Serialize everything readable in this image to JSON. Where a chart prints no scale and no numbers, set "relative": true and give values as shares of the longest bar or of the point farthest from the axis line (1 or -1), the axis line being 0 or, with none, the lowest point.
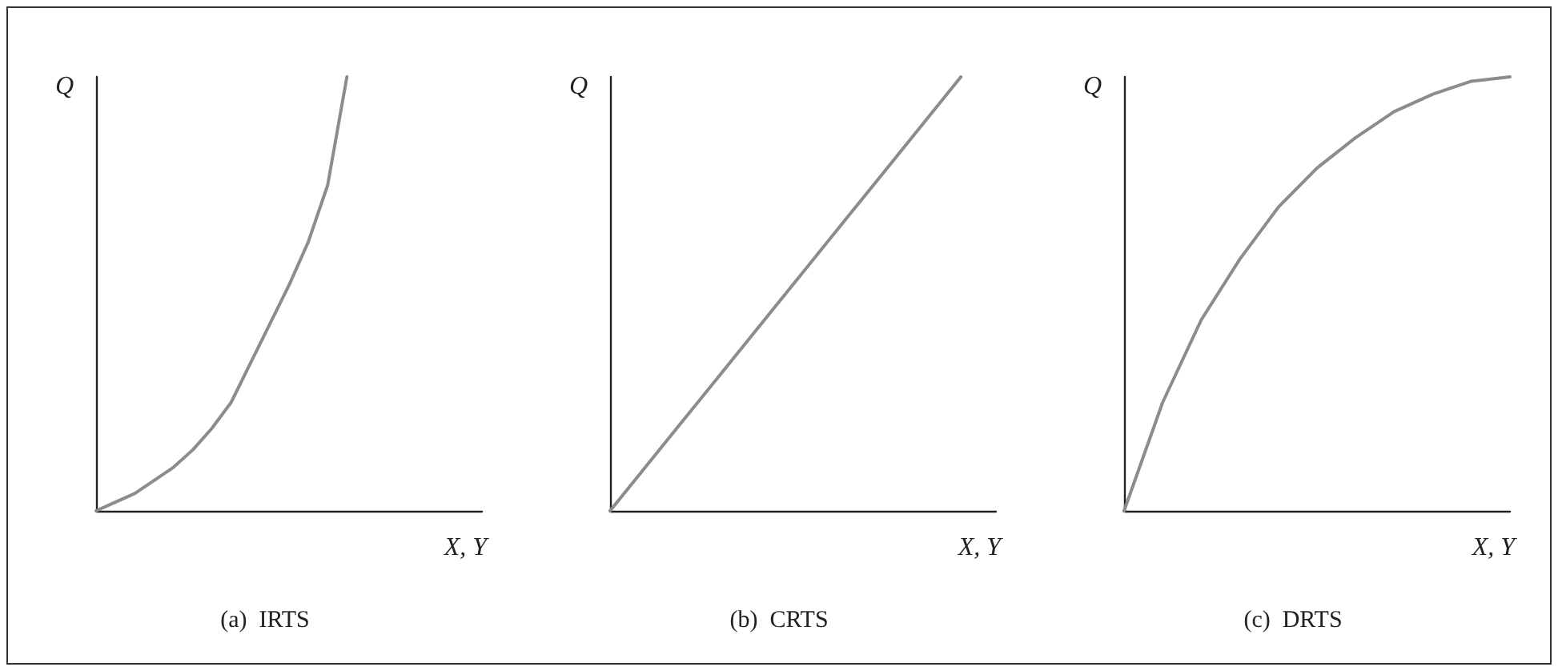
{
  "chart_data": [
    {
      "type": "line",
      "title": "(a)  IRTS",
      "xlabel": "X, Y",
      "ylabel": "Q",
      "relative": true,
      "grid": false,
      "marker": "none",
      "line_style": "solid",
      "categories": [
        null,
        null,
        null,
        null,
        null,
        null,
        null,
        null,
        null,
        null,
        null,
        null,
        null,
        null,
        null,
        null,
        null,
        null,
        null,
        null,
        null
      ],
      "series": [
        {
          "color": "#8c8c8c",
          "values": [
            0,
            0.02,
            0.04,
            0.07,
            0.1,
            0.14,
            0.19,
            0.25,
            0.34,
            0.43,
            0.52,
            0.62,
            0.75,
            1,
            null,
            null,
            null,
            null,
            null,
            null,
            null
          ]
        }
      ]
    },
    {
      "type": "line",
      "title": "(b)  CRTS",
      "xlabel": "X, Y",
      "ylabel": "Q",
      "relative": true,
      "grid": false,
      "marker": "none",
      "line_style": "solid",
      "categories": [
        null,
        null,
        null,
        null,
        null,
        null,
        null,
        null,
        null,
        null,
        null,
        null
      ],
      "series": [
        {
          "color": "#8c8c8c",
          "values": [
            0,
            0.1,
            0.2,
            0.3,
            0.4,
            0.5,
            0.6,
            0.7,
            0.8,
            0.9,
            1,
            null
          ]
        }
      ]
    },
    {
      "type": "line",
      "title": "(c)  DRTS",
      "xlabel": "X, Y",
      "ylabel": "Q",
      "relative": true,
      "grid": false,
      "marker": "none",
      "line_style": "solid",
      "categories": [
        null,
        null,
        null,
        null,
        null,
        null,
        null,
        null,
        null,
        null,
        null
      ],
      "series": [
        {
          "color": "#8c8c8c",
          "values": [
            0,
            0.25,
            0.44,
            0.58,
            0.7,
            0.79,
            0.86,
            0.92,
            0.96,
            0.99,
            1
          ]
        }
      ]
    }
  ]
}
